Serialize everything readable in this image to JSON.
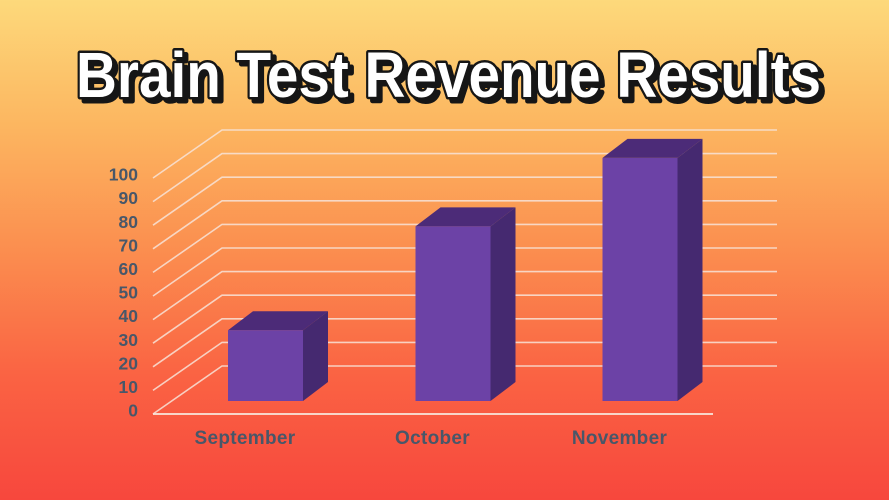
{
  "chart_data": {
    "type": "bar",
    "variant": "3d-column",
    "title": "Brain Test Revenue Results",
    "categories": [
      "September",
      "October",
      "November"
    ],
    "values": [
      30,
      74,
      103
    ],
    "yticks": [
      0,
      10,
      20,
      30,
      40,
      50,
      60,
      70,
      80,
      90,
      100
    ],
    "ylim": [
      0,
      110
    ],
    "xlabel": "",
    "ylabel": "",
    "grid": true,
    "legend": false,
    "colors": {
      "background_stops": [
        "#FDD97B",
        "#FCB660",
        "#FB8E4F",
        "#FA6343",
        "#F7473D"
      ],
      "bar_front": "#6C42A6",
      "bar_top": "#4C2B78",
      "bar_side": "#452970",
      "gridline": "#F7E3D8",
      "axis_text": "#485769",
      "title_fill": "#FFFFFF",
      "title_outline": "#161616"
    }
  }
}
